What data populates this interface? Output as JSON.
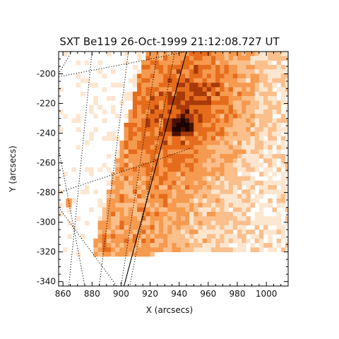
{
  "chart_data": {
    "type": "heatmap",
    "title": "SXT Be119 26-Oct-1999 21:12:08.727 UT",
    "xlabel": "X (arcsecs)",
    "ylabel": "Y (arcsecs)",
    "xlim": [
      857,
      1015
    ],
    "ylim": [
      -343,
      -185
    ],
    "xticks": [
      860,
      880,
      900,
      920,
      940,
      960,
      980,
      1000
    ],
    "yticks": [
      -200,
      -220,
      -240,
      -260,
      -280,
      -300,
      -320,
      -340
    ],
    "grid": "dotted heliographic coordinate lines",
    "colormap": [
      "#ffffff",
      "#fde6cf",
      "#fbbf8c",
      "#f59a4f",
      "#e56c1c",
      "#a83a0a",
      "#4a1205",
      "#1a0503"
    ],
    "features": {
      "bright_core": {
        "x": 940,
        "y": -233,
        "peak": 1.0
      },
      "data_coverage": {
        "xmin": 857,
        "xmax": 1015,
        "ymin": -321,
        "ymax": -185
      },
      "solid_limb_line": [
        [
          902,
          -343
        ],
        [
          945,
          -185
        ]
      ]
    }
  }
}
